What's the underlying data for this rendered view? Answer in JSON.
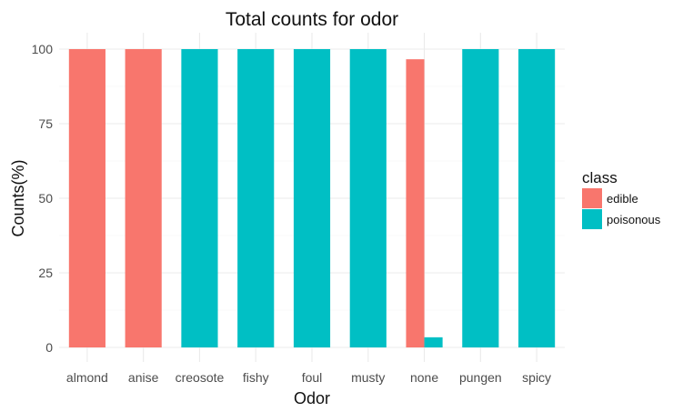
{
  "chart_data": {
    "type": "bar",
    "title": "Total counts for odor",
    "xlabel": "Odor",
    "ylabel": "Counts(%)",
    "categories": [
      "almond",
      "anise",
      "creosote",
      "fishy",
      "foul",
      "musty",
      "none",
      "pungen",
      "spicy"
    ],
    "series": [
      {
        "name": "edible",
        "color": "#F8766D",
        "values": [
          100,
          100,
          0,
          0,
          0,
          0,
          96.6,
          0,
          0
        ]
      },
      {
        "name": "poisonous",
        "color": "#00BFC4",
        "values": [
          0,
          0,
          100,
          100,
          100,
          100,
          3.4,
          100,
          100
        ]
      }
    ],
    "ylim": [
      0,
      100
    ],
    "yticks": [
      0,
      25,
      50,
      75,
      100
    ],
    "ytick_labels": [
      "0",
      "25",
      "50",
      "75",
      "100"
    ],
    "grid": true,
    "legend": {
      "title": "class",
      "position": "right",
      "entries": [
        "edible",
        "poisonous"
      ]
    }
  }
}
